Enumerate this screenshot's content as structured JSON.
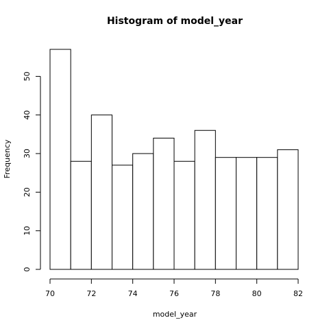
{
  "chart_data": {
    "type": "bar",
    "title": "Histogram of model_year",
    "xlabel": "model_year",
    "ylabel": "Frequency",
    "bins": [
      {
        "x0": 70,
        "x1": 71,
        "count": 57
      },
      {
        "x0": 71,
        "x1": 72,
        "count": 28
      },
      {
        "x0": 72,
        "x1": 73,
        "count": 40
      },
      {
        "x0": 73,
        "x1": 74,
        "count": 27
      },
      {
        "x0": 74,
        "x1": 75,
        "count": 30
      },
      {
        "x0": 75,
        "x1": 76,
        "count": 34
      },
      {
        "x0": 76,
        "x1": 77,
        "count": 28
      },
      {
        "x0": 77,
        "x1": 78,
        "count": 36
      },
      {
        "x0": 78,
        "x1": 79,
        "count": 29
      },
      {
        "x0": 79,
        "x1": 80,
        "count": 29
      },
      {
        "x0": 80,
        "x1": 81,
        "count": 29
      },
      {
        "x0": 81,
        "x1": 82,
        "count": 31
      }
    ],
    "xlim": [
      70,
      82
    ],
    "ylim": [
      0,
      57
    ],
    "xticks": [
      70,
      72,
      74,
      76,
      78,
      80,
      82
    ],
    "yticks": [
      0,
      10,
      20,
      30,
      40,
      50
    ],
    "grid": false
  }
}
